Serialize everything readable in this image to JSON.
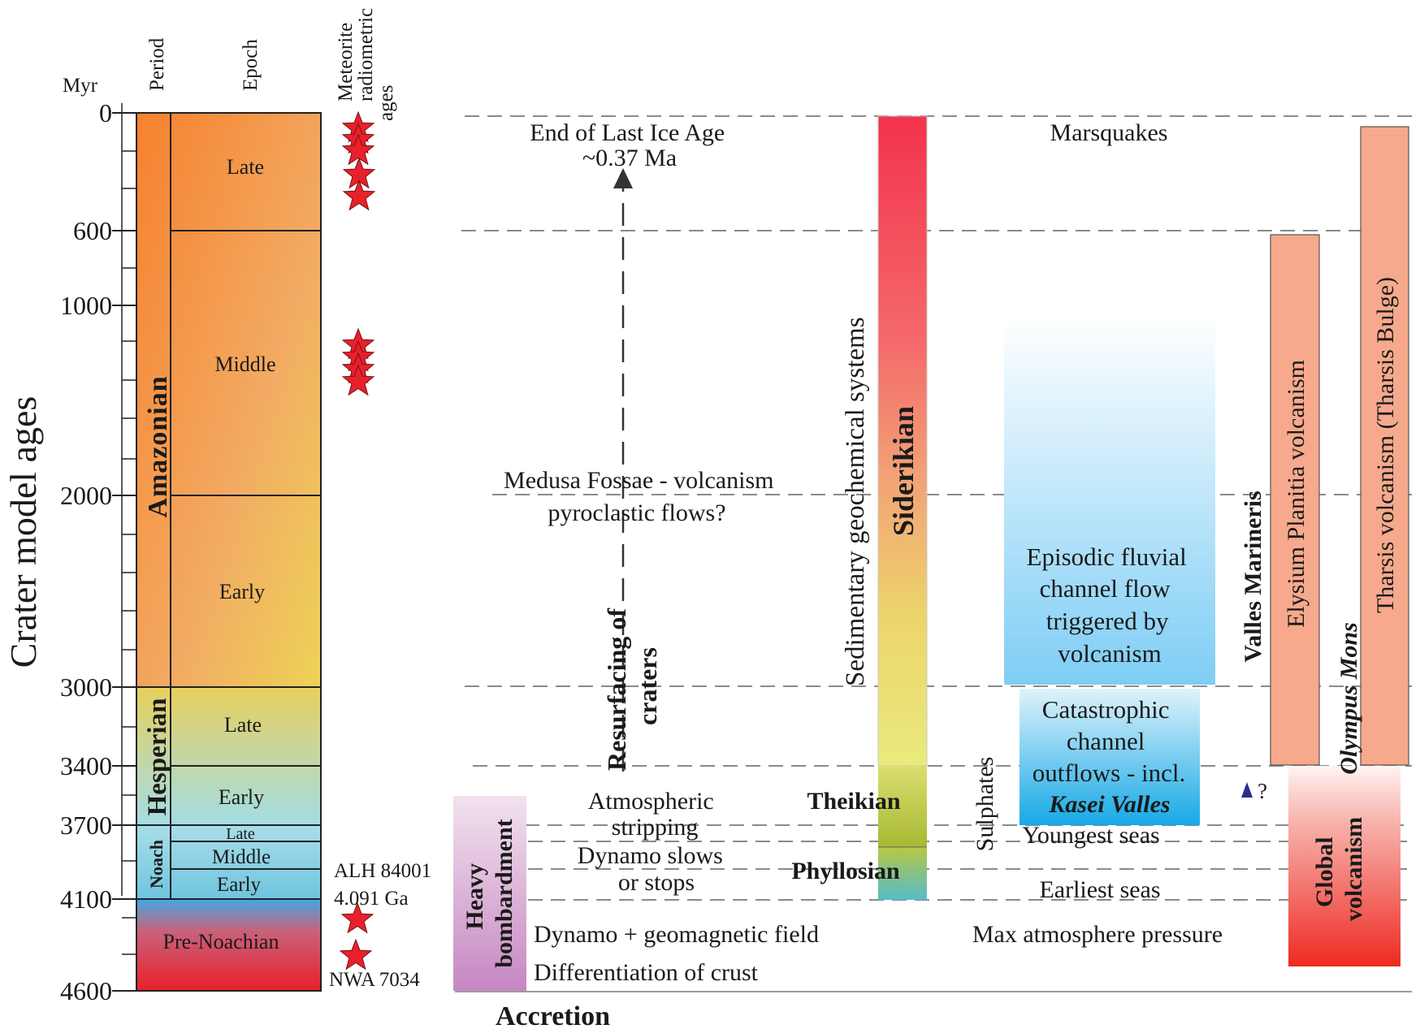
{
  "axis": {
    "title": "Crater model ages",
    "unit": "Myr",
    "ticks": [
      {
        "label": "0",
        "value": 0
      },
      {
        "label": "600",
        "value": 600
      },
      {
        "label": "1000",
        "value": 1000
      },
      {
        "label": "2000",
        "value": 2000
      },
      {
        "label": "3000",
        "value": 3000
      },
      {
        "label": "3400",
        "value": 3400
      },
      {
        "label": "3700",
        "value": 3700
      },
      {
        "label": "4100",
        "value": 4100
      },
      {
        "label": "4600",
        "value": 4600
      }
    ]
  },
  "headers": {
    "period": "Period",
    "epoch": "Epoch",
    "meteorite_line1": "Meteorite",
    "meteorite_line2": "radiometric",
    "meteorite_line3": "ages"
  },
  "periods": {
    "amazonian": "Amazonian",
    "hesperian": "Hesperian",
    "noachian": "Noach",
    "pre_noachian": "Pre-Noachian"
  },
  "epochs": {
    "amazonian_late": "Late",
    "amazonian_middle": "Middle",
    "amazonian_early": "Early",
    "hesperian_late": "Late",
    "hesperian_early": "Early",
    "noachian_late": "Late",
    "noachian_middle": "Middle",
    "noachian_early": "Early"
  },
  "meteorites": {
    "alh_name": "ALH 84001",
    "alh_age": "4.091 Ga",
    "nwa_name": "NWA 7034"
  },
  "events": {
    "ice_age_line1": "End of Last Ice Age",
    "ice_age_line2": "~0.37 Ma",
    "medusa_line1": "Medusa Fossae - volcanism",
    "medusa_line2": "pyroclastic flows?",
    "resurfacing_line1": "Resurfacing of",
    "resurfacing_line2": "craters",
    "atmospheric_line1": "Atmospheric",
    "atmospheric_line2": "stripping",
    "dynamo_line1": "Dynamo slows",
    "dynamo_line2": "or stops",
    "dynamo_field": "Dynamo + geomagnetic field",
    "differentiation": "Differentiation of crust",
    "accretion": "Accretion",
    "heavy_line1": "Heavy",
    "heavy_line2": "bombardment"
  },
  "geochem": {
    "title": "Sedimentary geochemical systems",
    "siderikian": "Siderikian",
    "theikian": "Theikian",
    "phyllosian": "Phyllosian",
    "sulphates": "Sulphates"
  },
  "water": {
    "marsquakes": "Marsquakes",
    "episodic_line1": "Episodic fluvial",
    "episodic_line2": "channel flow",
    "episodic_line3": "triggered by",
    "episodic_line4": "volcanism",
    "catastrophic_line1": "Catastrophic",
    "catastrophic_line2": "channel",
    "catastrophic_line3": "outflows - incl.",
    "kasei": "Kasei Valles",
    "youngest_seas": "Youngest seas",
    "earliest_seas": "Earliest seas",
    "max_atmosphere": "Max atmosphere pressure"
  },
  "volcanism": {
    "valles_marineris": "Valles Marineris",
    "question": "?",
    "elysium": "Elysium Planitia volcanism",
    "olympus": "Olympus Mons",
    "tharsis": "Tharsis volcanism (Tharsis Bulge)",
    "global_line1": "Global",
    "global_line2": "volcanism"
  },
  "colors": {
    "star": "#e8202a",
    "arrow": "#333333",
    "dash": "#8a8a8a",
    "tharsis_bar": "#f6a98c",
    "global_bottom": "#ee2a22",
    "water_blue": "#66c6f2",
    "kasei_blue": "#22aee8"
  }
}
